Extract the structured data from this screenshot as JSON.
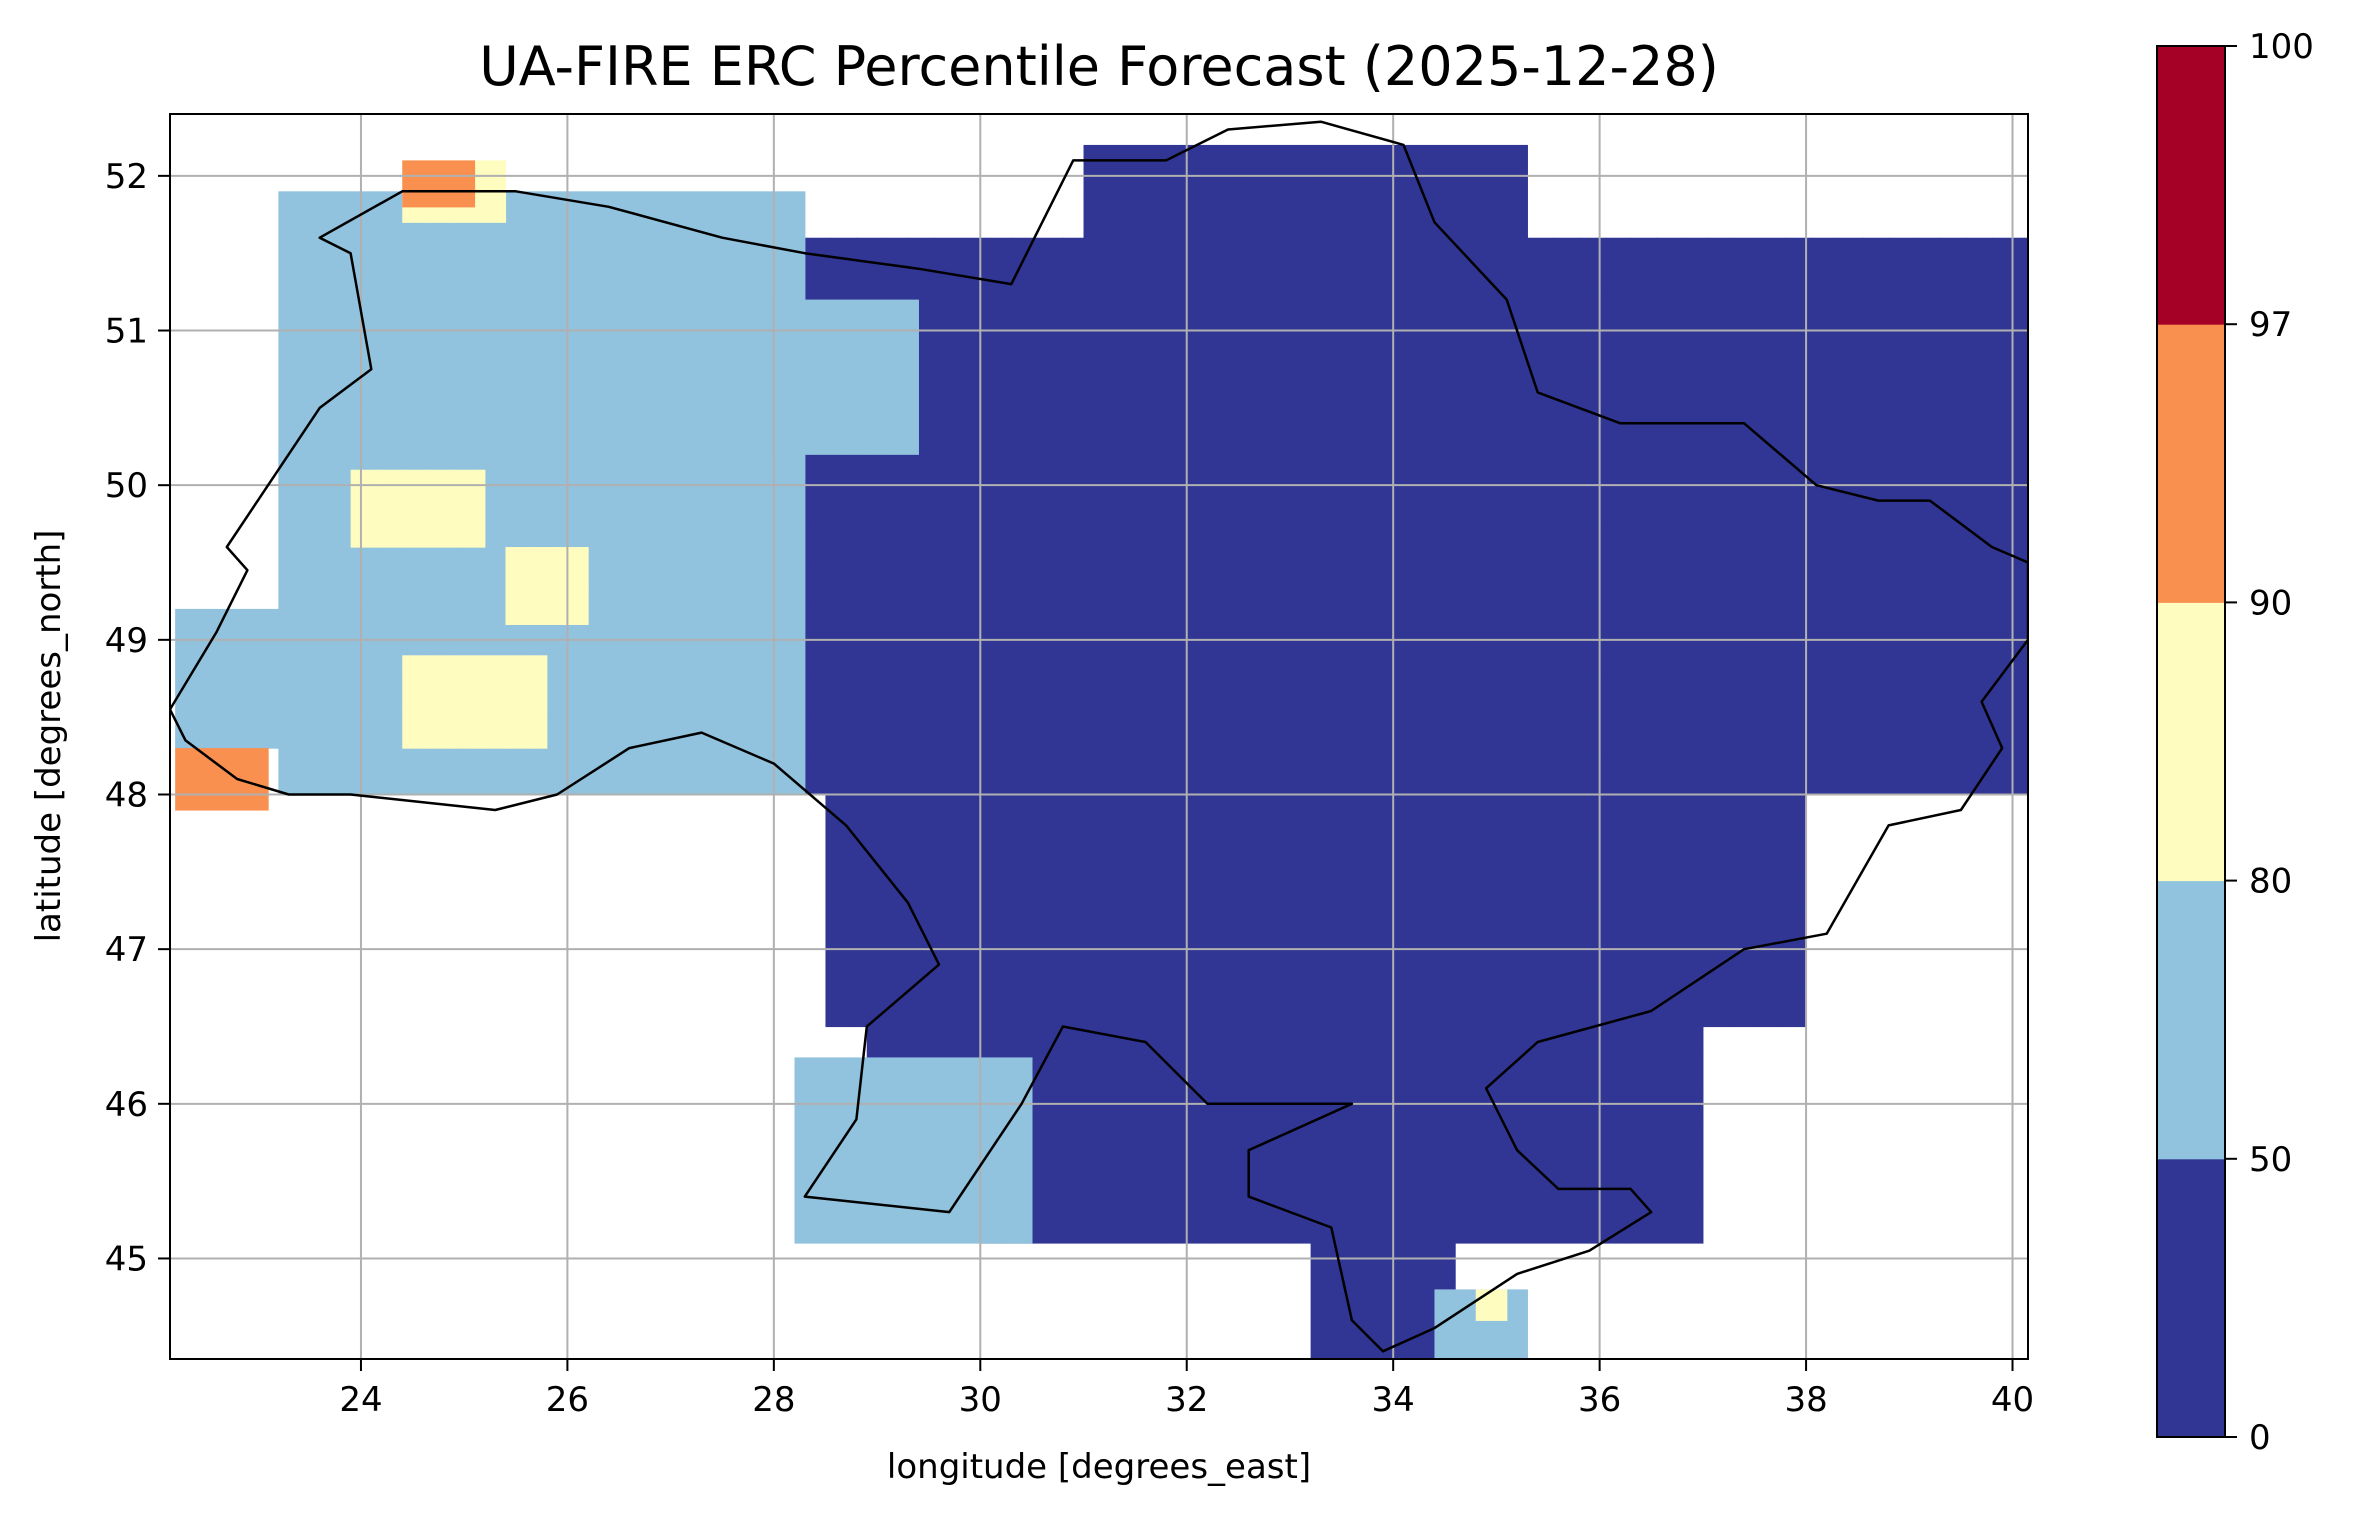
{
  "chart_data": {
    "type": "heatmap",
    "title": "UA-FIRE ERC Percentile Forecast (2025-12-28)",
    "xlabel": "longitude [degrees_east]",
    "ylabel": "latitude [degrees_north]",
    "xlim": [
      22.15,
      40.15
    ],
    "ylim": [
      44.35,
      52.4
    ],
    "x_ticks": [
      24,
      26,
      28,
      30,
      32,
      34,
      36,
      38,
      40
    ],
    "y_ticks": [
      45,
      46,
      47,
      48,
      49,
      50,
      51,
      52
    ],
    "x_tick_labels": [
      "24",
      "26",
      "28",
      "30",
      "32",
      "34",
      "36",
      "38",
      "40"
    ],
    "y_tick_labels": [
      "45",
      "46",
      "47",
      "48",
      "49",
      "50",
      "51",
      "52"
    ],
    "grid": true,
    "colorbar": {
      "bounds": [
        0,
        50,
        80,
        90,
        97,
        100
      ],
      "tick_labels": [
        "0",
        "50",
        "80",
        "90",
        "97",
        "100"
      ],
      "colors": [
        "#313695",
        "#91c2de",
        "#fefcbf",
        "#fa9050",
        "#a50026"
      ]
    },
    "cell_size_deg": 0.25,
    "regions": [
      {
        "class": 0,
        "lon": [
          28.3,
          40.15
        ],
        "lat": [
          48.0,
          51.6
        ]
      },
      {
        "class": 0,
        "lon": [
          31.0,
          35.3
        ],
        "lat": [
          51.6,
          52.2
        ]
      },
      {
        "class": 0,
        "lon": [
          28.5,
          38.0
        ],
        "lat": [
          46.5,
          48.0
        ]
      },
      {
        "class": 0,
        "lon": [
          30.0,
          37.0
        ],
        "lat": [
          45.1,
          46.5
        ]
      },
      {
        "class": 0,
        "lon": [
          33.2,
          34.6
        ],
        "lat": [
          44.35,
          45.1
        ]
      },
      {
        "class": 0,
        "lon": [
          28.9,
          30.0
        ],
        "lat": [
          45.9,
          46.6
        ]
      },
      {
        "class": 1,
        "lon": [
          23.2,
          28.3
        ],
        "lat": [
          48.0,
          51.9
        ]
      },
      {
        "class": 1,
        "lon": [
          27.4,
          29.4
        ],
        "lat": [
          50.2,
          51.2
        ]
      },
      {
        "class": 1,
        "lon": [
          22.2,
          23.2
        ],
        "lat": [
          48.3,
          49.2
        ]
      },
      {
        "class": 1,
        "lon": [
          28.2,
          30.5
        ],
        "lat": [
          45.1,
          46.3
        ]
      },
      {
        "class": 1,
        "lon": [
          34.4,
          35.3
        ],
        "lat": [
          44.35,
          44.8
        ]
      },
      {
        "class": 2,
        "lon": [
          23.9,
          25.2
        ],
        "lat": [
          49.6,
          50.1
        ]
      },
      {
        "class": 2,
        "lon": [
          25.4,
          26.2
        ],
        "lat": [
          49.1,
          49.6
        ]
      },
      {
        "class": 2,
        "lon": [
          24.4,
          25.8
        ],
        "lat": [
          48.3,
          48.9
        ]
      },
      {
        "class": 2,
        "lon": [
          24.4,
          25.4
        ],
        "lat": [
          51.7,
          52.1
        ]
      },
      {
        "class": 2,
        "lon": [
          34.8,
          35.1
        ],
        "lat": [
          44.6,
          44.8
        ]
      },
      {
        "class": 3,
        "lon": [
          22.2,
          23.1
        ],
        "lat": [
          47.9,
          48.3
        ]
      },
      {
        "class": 3,
        "lon": [
          24.4,
          25.1
        ],
        "lat": [
          51.8,
          52.1
        ]
      }
    ],
    "country_outline_deg": [
      [
        22.15,
        48.55
      ],
      [
        22.6,
        49.05
      ],
      [
        22.9,
        49.45
      ],
      [
        22.7,
        49.6
      ],
      [
        23.6,
        50.5
      ],
      [
        24.1,
        50.75
      ],
      [
        23.9,
        51.5
      ],
      [
        23.6,
        51.6
      ],
      [
        24.4,
        51.9
      ],
      [
        25.5,
        51.9
      ],
      [
        26.4,
        51.8
      ],
      [
        27.5,
        51.6
      ],
      [
        28.3,
        51.5
      ],
      [
        29.4,
        51.4
      ],
      [
        30.3,
        51.3
      ],
      [
        30.6,
        51.7
      ],
      [
        30.9,
        52.1
      ],
      [
        31.8,
        52.1
      ],
      [
        32.4,
        52.3
      ],
      [
        33.3,
        52.35
      ],
      [
        34.1,
        52.2
      ],
      [
        34.4,
        51.7
      ],
      [
        35.1,
        51.2
      ],
      [
        35.4,
        50.6
      ],
      [
        36.2,
        50.4
      ],
      [
        37.4,
        50.4
      ],
      [
        38.1,
        50.0
      ],
      [
        38.7,
        49.9
      ],
      [
        39.2,
        49.9
      ],
      [
        39.8,
        49.6
      ],
      [
        40.15,
        49.5
      ],
      [
        40.15,
        49.0
      ],
      [
        39.7,
        48.6
      ],
      [
        39.9,
        48.3
      ],
      [
        39.5,
        47.9
      ],
      [
        38.8,
        47.8
      ],
      [
        38.2,
        47.1
      ],
      [
        37.4,
        47.0
      ],
      [
        36.5,
        46.6
      ],
      [
        35.4,
        46.4
      ],
      [
        34.9,
        46.1
      ],
      [
        35.2,
        45.7
      ],
      [
        35.6,
        45.45
      ],
      [
        36.3,
        45.45
      ],
      [
        36.5,
        45.3
      ],
      [
        35.9,
        45.05
      ],
      [
        35.2,
        44.9
      ],
      [
        34.4,
        44.55
      ],
      [
        33.9,
        44.4
      ],
      [
        33.6,
        44.6
      ],
      [
        33.4,
        45.2
      ],
      [
        32.6,
        45.4
      ],
      [
        32.6,
        45.7
      ],
      [
        33.6,
        46.0
      ],
      [
        32.2,
        46.0
      ],
      [
        31.6,
        46.4
      ],
      [
        30.8,
        46.5
      ],
      [
        30.4,
        46.0
      ],
      [
        29.7,
        45.3
      ],
      [
        28.3,
        45.4
      ],
      [
        28.8,
        45.9
      ],
      [
        28.9,
        46.5
      ],
      [
        29.6,
        46.9
      ],
      [
        29.3,
        47.3
      ],
      [
        28.7,
        47.8
      ],
      [
        28.0,
        48.2
      ],
      [
        27.3,
        48.4
      ],
      [
        26.6,
        48.3
      ],
      [
        25.9,
        48.0
      ],
      [
        25.3,
        47.9
      ],
      [
        24.6,
        47.95
      ],
      [
        23.9,
        48.0
      ],
      [
        23.3,
        48.0
      ],
      [
        22.8,
        48.1
      ],
      [
        22.3,
        48.35
      ],
      [
        22.15,
        48.55
      ]
    ]
  }
}
